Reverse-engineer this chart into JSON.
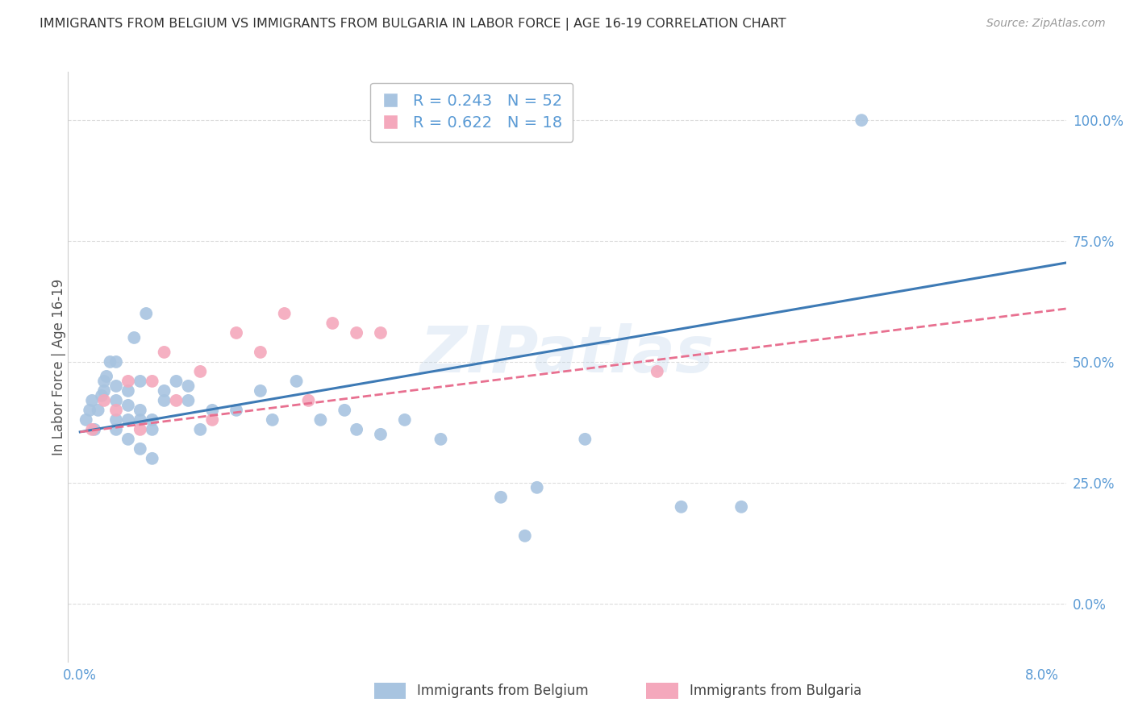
{
  "title": "IMMIGRANTS FROM BELGIUM VS IMMIGRANTS FROM BULGARIA IN LABOR FORCE | AGE 16-19 CORRELATION CHART",
  "source": "Source: ZipAtlas.com",
  "ylabel": "In Labor Force | Age 16-19",
  "xlim": [
    -0.001,
    0.082
  ],
  "ylim": [
    -0.12,
    1.1
  ],
  "xtick_positions": [
    0.0,
    0.01,
    0.02,
    0.03,
    0.04,
    0.05,
    0.06,
    0.07,
    0.08
  ],
  "xticklabels": [
    "0.0%",
    "",
    "",
    "",
    "",
    "",
    "",
    "",
    "8.0%"
  ],
  "yticks_right": [
    0.0,
    0.25,
    0.5,
    0.75,
    1.0
  ],
  "yticklabels_right": [
    "0.0%",
    "25.0%",
    "50.0%",
    "75.0%",
    "100.0%"
  ],
  "legend_r_belgium": "R = 0.243",
  "legend_n_belgium": "N = 52",
  "legend_r_bulgaria": "R = 0.622",
  "legend_n_bulgaria": "N = 18",
  "belgium_color": "#a8c4e0",
  "bulgaria_color": "#f4a8bc",
  "belgium_line_color": "#3d7ab5",
  "bulgaria_line_color": "#e87090",
  "watermark": "ZIPatlas",
  "belgium_x": [
    0.0005,
    0.0008,
    0.001,
    0.0012,
    0.0015,
    0.0018,
    0.002,
    0.002,
    0.0022,
    0.0025,
    0.003,
    0.003,
    0.003,
    0.003,
    0.003,
    0.004,
    0.004,
    0.004,
    0.004,
    0.0045,
    0.005,
    0.005,
    0.005,
    0.005,
    0.0055,
    0.006,
    0.006,
    0.006,
    0.007,
    0.007,
    0.008,
    0.009,
    0.009,
    0.01,
    0.011,
    0.013,
    0.015,
    0.016,
    0.018,
    0.02,
    0.022,
    0.023,
    0.025,
    0.027,
    0.03,
    0.035,
    0.037,
    0.038,
    0.042,
    0.05,
    0.055,
    0.065
  ],
  "belgium_y": [
    0.38,
    0.4,
    0.42,
    0.36,
    0.4,
    0.43,
    0.44,
    0.46,
    0.47,
    0.5,
    0.36,
    0.38,
    0.42,
    0.45,
    0.5,
    0.34,
    0.38,
    0.41,
    0.44,
    0.55,
    0.32,
    0.38,
    0.4,
    0.46,
    0.6,
    0.3,
    0.36,
    0.38,
    0.42,
    0.44,
    0.46,
    0.42,
    0.45,
    0.36,
    0.4,
    0.4,
    0.44,
    0.38,
    0.46,
    0.38,
    0.4,
    0.36,
    0.35,
    0.38,
    0.34,
    0.22,
    0.14,
    0.24,
    0.34,
    0.2,
    0.2,
    1.0
  ],
  "bulgaria_x": [
    0.001,
    0.002,
    0.003,
    0.004,
    0.005,
    0.006,
    0.007,
    0.008,
    0.01,
    0.011,
    0.013,
    0.015,
    0.017,
    0.019,
    0.021,
    0.023,
    0.025,
    0.048
  ],
  "bulgaria_y": [
    0.36,
    0.42,
    0.4,
    0.46,
    0.36,
    0.46,
    0.52,
    0.42,
    0.48,
    0.38,
    0.56,
    0.52,
    0.6,
    0.42,
    0.58,
    0.56,
    0.56,
    0.48
  ],
  "belgium_trend_x": [
    0.0,
    0.082
  ],
  "belgium_trend_y": [
    0.355,
    0.705
  ],
  "bulgaria_trend_x": [
    0.0,
    0.082
  ],
  "bulgaria_trend_y": [
    0.355,
    0.61
  ],
  "grid_color": "#dddddd",
  "bg_color": "#ffffff",
  "title_color": "#333333",
  "axis_color": "#5b9bd5",
  "legend_text_color": "#5b9bd5",
  "bottom_legend_belgium": "Immigrants from Belgium",
  "bottom_legend_bulgaria": "Immigrants from Bulgaria"
}
